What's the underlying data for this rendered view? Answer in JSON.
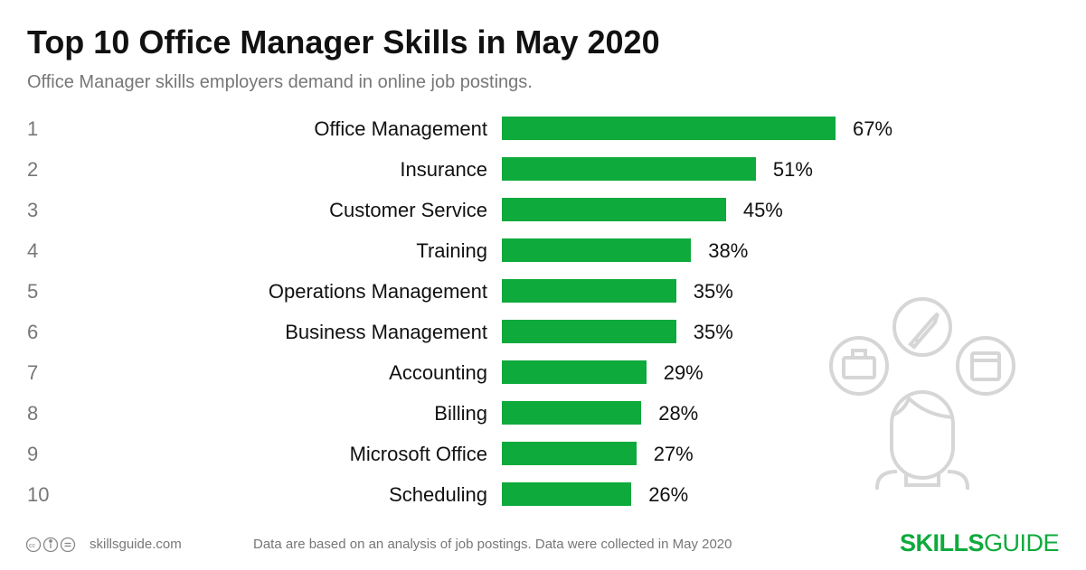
{
  "title": "Top 10 Office Manager Skills in May 2020",
  "subtitle": "Office Manager skills employers demand in online job postings.",
  "chart_data": {
    "type": "bar",
    "orientation": "horizontal",
    "title": "Top 10 Office Manager Skills in May 2020",
    "subtitle": "Office Manager skills employers demand in online job postings.",
    "ranks": [
      "1",
      "2",
      "3",
      "4",
      "5",
      "6",
      "7",
      "8",
      "9",
      "10"
    ],
    "categories": [
      "Office Management",
      "Insurance",
      "Customer Service",
      "Training",
      "Operations Management",
      "Business Management",
      "Accounting",
      "Billing",
      "Microsoft Office",
      "Scheduling"
    ],
    "values": [
      67,
      51,
      45,
      38,
      35,
      35,
      29,
      28,
      27,
      26
    ],
    "value_labels": [
      "67%",
      "51%",
      "45%",
      "38%",
      "35%",
      "35%",
      "29%",
      "28%",
      "27%",
      "26%"
    ],
    "unit": "%",
    "bar_color": "#0eaa3c",
    "grid": false
  },
  "footer": {
    "license_icons": [
      "cc-icon",
      "attribution-icon",
      "no-derivatives-icon"
    ],
    "site": "skillsguide.com",
    "note": "Data are based on an analysis of job postings. Data were collected in May 2020",
    "logo_bold": "SKILLS",
    "logo_rest": "GUIDE"
  }
}
